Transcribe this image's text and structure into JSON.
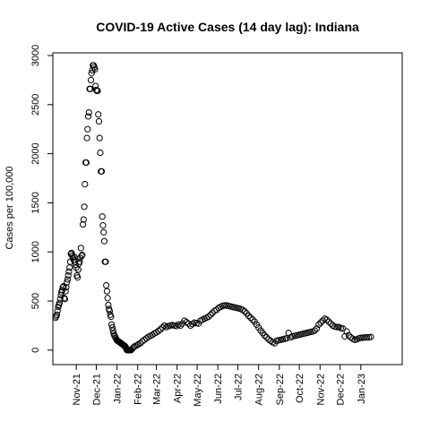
{
  "chart_data": {
    "type": "scatter",
    "title": "COVID-19 Active Cases (14 day lag): Indiana",
    "xlabel": "",
    "ylabel": "Cases per 100,000",
    "x_axis": {
      "range": [
        "2021-10-01",
        "2023-02-28"
      ],
      "tick_labels": [
        "Nov-21",
        "Dec-21",
        "Jan-22",
        "Feb-22",
        "Mar-22",
        "Apr-22",
        "May-22",
        "Jun-22",
        "Jul-22",
        "Aug-22",
        "Sep-22",
        "Oct-22",
        "Nov-22",
        "Dec-22",
        "Jan-23"
      ],
      "tick_dates": [
        "2021-11-01",
        "2021-12-01",
        "2022-01-01",
        "2022-02-01",
        "2022-03-01",
        "2022-04-01",
        "2022-05-01",
        "2022-06-01",
        "2022-07-01",
        "2022-08-01",
        "2022-09-01",
        "2022-10-01",
        "2022-11-01",
        "2022-12-01",
        "2023-01-01"
      ]
    },
    "y_axis": {
      "range": [
        -120,
        3000
      ],
      "ticks": [
        0,
        500,
        1000,
        1500,
        2000,
        2500,
        3000
      ]
    },
    "grid": false,
    "legend": "none",
    "colors": {
      "points": "#000000",
      "axes": "#000000",
      "background": "#ffffff"
    },
    "points": [
      [
        "2021-10-01",
        330
      ],
      [
        "2021-10-02",
        345
      ],
      [
        "2021-10-03",
        360
      ],
      [
        "2021-10-04",
        400
      ],
      [
        "2021-10-05",
        440
      ],
      [
        "2021-10-06",
        460
      ],
      [
        "2021-10-07",
        480
      ],
      [
        "2021-10-08",
        520
      ],
      [
        "2021-10-09",
        560
      ],
      [
        "2021-10-10",
        590
      ],
      [
        "2021-10-11",
        610
      ],
      [
        "2021-10-12",
        640
      ],
      [
        "2021-10-13",
        650
      ],
      [
        "2021-10-14",
        530
      ],
      [
        "2021-10-15",
        520
      ],
      [
        "2021-10-16",
        600
      ],
      [
        "2021-10-17",
        640
      ],
      [
        "2021-10-18",
        690
      ],
      [
        "2021-10-19",
        720
      ],
      [
        "2021-10-20",
        760
      ],
      [
        "2021-10-21",
        800
      ],
      [
        "2021-10-22",
        840
      ],
      [
        "2021-10-23",
        900
      ],
      [
        "2021-10-24",
        980
      ],
      [
        "2021-10-25",
        990
      ],
      [
        "2021-10-26",
        960
      ],
      [
        "2021-10-27",
        940
      ],
      [
        "2021-10-28",
        920
      ],
      [
        "2021-10-29",
        950
      ],
      [
        "2021-10-30",
        900
      ],
      [
        "2021-10-31",
        870
      ],
      [
        "2021-11-01",
        840
      ],
      [
        "2021-11-02",
        760
      ],
      [
        "2021-11-03",
        740
      ],
      [
        "2021-11-04",
        820
      ],
      [
        "2021-11-05",
        880
      ],
      [
        "2021-11-06",
        900
      ],
      [
        "2021-11-07",
        940
      ],
      [
        "2021-11-08",
        1040
      ],
      [
        "2021-11-09",
        960
      ],
      [
        "2021-11-10",
        970
      ],
      [
        "2021-11-11",
        1280
      ],
      [
        "2021-11-12",
        1330
      ],
      [
        "2021-11-13",
        1460
      ],
      [
        "2021-11-14",
        1690
      ],
      [
        "2021-11-15",
        1910
      ],
      [
        "2021-11-16",
        1910
      ],
      [
        "2021-11-17",
        2160
      ],
      [
        "2021-11-18",
        2250
      ],
      [
        "2021-11-19",
        2380
      ],
      [
        "2021-11-20",
        2420
      ],
      [
        "2021-11-21",
        2660
      ],
      [
        "2021-11-22",
        2660
      ],
      [
        "2021-11-23",
        2750
      ],
      [
        "2021-11-24",
        2820
      ],
      [
        "2021-11-25",
        2850
      ],
      [
        "2021-11-26",
        2900
      ],
      [
        "2021-11-27",
        2900
      ],
      [
        "2021-11-28",
        2880
      ],
      [
        "2021-11-29",
        2860
      ],
      [
        "2021-11-30",
        2690
      ],
      [
        "2021-12-01",
        2650
      ],
      [
        "2021-12-02",
        2640
      ],
      [
        "2021-12-03",
        2640
      ],
      [
        "2021-12-04",
        2400
      ],
      [
        "2021-12-05",
        2330
      ],
      [
        "2021-12-06",
        2160
      ],
      [
        "2021-12-07",
        2010
      ],
      [
        "2021-12-08",
        1820
      ],
      [
        "2021-12-09",
        1820
      ],
      [
        "2021-12-10",
        1360
      ],
      [
        "2021-12-11",
        1270
      ],
      [
        "2021-12-12",
        1200
      ],
      [
        "2021-12-13",
        1110
      ],
      [
        "2021-12-14",
        900
      ],
      [
        "2021-12-15",
        900
      ],
      [
        "2021-12-16",
        660
      ],
      [
        "2021-12-17",
        600
      ],
      [
        "2021-12-18",
        530
      ],
      [
        "2021-12-19",
        460
      ],
      [
        "2021-12-20",
        420
      ],
      [
        "2021-12-21",
        400
      ],
      [
        "2021-12-22",
        360
      ],
      [
        "2021-12-23",
        340
      ],
      [
        "2021-12-24",
        260
      ],
      [
        "2021-12-25",
        230
      ],
      [
        "2021-12-26",
        200
      ],
      [
        "2021-12-27",
        170
      ],
      [
        "2021-12-28",
        150
      ],
      [
        "2021-12-29",
        140
      ],
      [
        "2021-12-30",
        125
      ],
      [
        "2021-12-31",
        110
      ],
      [
        "2022-01-01",
        100
      ],
      [
        "2022-01-02",
        95
      ],
      [
        "2022-01-03",
        90
      ],
      [
        "2022-01-04",
        85
      ],
      [
        "2022-01-05",
        80
      ],
      [
        "2022-01-06",
        75
      ],
      [
        "2022-01-07",
        70
      ],
      [
        "2022-01-08",
        65
      ],
      [
        "2022-01-09",
        60
      ],
      [
        "2022-01-10",
        55
      ],
      [
        "2022-01-11",
        50
      ],
      [
        "2022-01-12",
        45
      ],
      [
        "2022-01-13",
        40
      ],
      [
        "2022-01-14",
        30
      ],
      [
        "2022-01-15",
        10
      ],
      [
        "2022-01-16",
        0
      ],
      [
        "2022-01-17",
        0
      ],
      [
        "2022-01-18",
        0
      ],
      [
        "2022-01-19",
        0
      ],
      [
        "2022-01-20",
        0
      ],
      [
        "2022-01-21",
        0
      ],
      [
        "2022-01-22",
        0
      ],
      [
        "2022-01-24",
        15
      ],
      [
        "2022-01-26",
        30
      ],
      [
        "2022-01-28",
        40
      ],
      [
        "2022-01-31",
        50
      ],
      [
        "2022-02-02",
        60
      ],
      [
        "2022-02-05",
        70
      ],
      [
        "2022-02-08",
        90
      ],
      [
        "2022-02-11",
        105
      ],
      [
        "2022-02-14",
        120
      ],
      [
        "2022-02-17",
        135
      ],
      [
        "2022-02-20",
        145
      ],
      [
        "2022-02-23",
        155
      ],
      [
        "2022-02-26",
        170
      ],
      [
        "2022-03-01",
        180
      ],
      [
        "2022-03-04",
        195
      ],
      [
        "2022-03-07",
        210
      ],
      [
        "2022-03-10",
        230
      ],
      [
        "2022-03-13",
        250
      ],
      [
        "2022-03-16",
        235
      ],
      [
        "2022-03-19",
        245
      ],
      [
        "2022-03-22",
        250
      ],
      [
        "2022-03-25",
        255
      ],
      [
        "2022-03-28",
        250
      ],
      [
        "2022-03-31",
        245
      ],
      [
        "2022-04-03",
        260
      ],
      [
        "2022-04-06",
        250
      ],
      [
        "2022-04-09",
        270
      ],
      [
        "2022-04-12",
        300
      ],
      [
        "2022-04-15",
        285
      ],
      [
        "2022-04-18",
        270
      ],
      [
        "2022-04-21",
        250
      ],
      [
        "2022-04-24",
        265
      ],
      [
        "2022-04-27",
        280
      ],
      [
        "2022-04-30",
        275
      ],
      [
        "2022-05-03",
        270
      ],
      [
        "2022-05-06",
        300
      ],
      [
        "2022-05-09",
        310
      ],
      [
        "2022-05-12",
        320
      ],
      [
        "2022-05-15",
        330
      ],
      [
        "2022-05-18",
        340
      ],
      [
        "2022-05-21",
        360
      ],
      [
        "2022-05-24",
        380
      ],
      [
        "2022-05-27",
        400
      ],
      [
        "2022-05-30",
        410
      ],
      [
        "2022-06-02",
        430
      ],
      [
        "2022-06-05",
        440
      ],
      [
        "2022-06-08",
        450
      ],
      [
        "2022-06-11",
        455
      ],
      [
        "2022-06-14",
        455
      ],
      [
        "2022-06-17",
        450
      ],
      [
        "2022-06-20",
        445
      ],
      [
        "2022-06-23",
        440
      ],
      [
        "2022-06-26",
        435
      ],
      [
        "2022-06-29",
        430
      ],
      [
        "2022-07-02",
        425
      ],
      [
        "2022-07-05",
        420
      ],
      [
        "2022-07-08",
        410
      ],
      [
        "2022-07-11",
        395
      ],
      [
        "2022-07-14",
        375
      ],
      [
        "2022-07-17",
        350
      ],
      [
        "2022-07-20",
        330
      ],
      [
        "2022-07-23",
        310
      ],
      [
        "2022-07-26",
        290
      ],
      [
        "2022-07-29",
        260
      ],
      [
        "2022-08-01",
        230
      ],
      [
        "2022-08-04",
        200
      ],
      [
        "2022-08-07",
        175
      ],
      [
        "2022-08-10",
        150
      ],
      [
        "2022-08-13",
        130
      ],
      [
        "2022-08-16",
        110
      ],
      [
        "2022-08-19",
        95
      ],
      [
        "2022-08-22",
        80
      ],
      [
        "2022-08-25",
        70
      ],
      [
        "2022-08-28",
        95
      ],
      [
        "2022-08-31",
        100
      ],
      [
        "2022-09-03",
        105
      ],
      [
        "2022-09-06",
        110
      ],
      [
        "2022-09-09",
        115
      ],
      [
        "2022-09-12",
        120
      ],
      [
        "2022-09-15",
        175
      ],
      [
        "2022-09-18",
        130
      ],
      [
        "2022-09-21",
        140
      ],
      [
        "2022-09-24",
        145
      ],
      [
        "2022-09-27",
        150
      ],
      [
        "2022-09-30",
        155
      ],
      [
        "2022-10-03",
        160
      ],
      [
        "2022-10-06",
        165
      ],
      [
        "2022-10-09",
        170
      ],
      [
        "2022-10-12",
        175
      ],
      [
        "2022-10-15",
        180
      ],
      [
        "2022-10-18",
        185
      ],
      [
        "2022-10-21",
        190
      ],
      [
        "2022-10-24",
        200
      ],
      [
        "2022-10-27",
        220
      ],
      [
        "2022-10-30",
        260
      ],
      [
        "2022-11-02",
        280
      ],
      [
        "2022-11-05",
        300
      ],
      [
        "2022-11-08",
        320
      ],
      [
        "2022-11-11",
        310
      ],
      [
        "2022-11-14",
        290
      ],
      [
        "2022-11-17",
        270
      ],
      [
        "2022-11-20",
        250
      ],
      [
        "2022-11-23",
        240
      ],
      [
        "2022-11-26",
        235
      ],
      [
        "2022-11-29",
        235
      ],
      [
        "2022-12-02",
        225
      ],
      [
        "2022-12-05",
        220
      ],
      [
        "2022-12-08",
        140
      ],
      [
        "2022-12-11",
        190
      ],
      [
        "2022-12-14",
        150
      ],
      [
        "2022-12-17",
        130
      ],
      [
        "2022-12-20",
        115
      ],
      [
        "2022-12-23",
        105
      ],
      [
        "2022-12-26",
        110
      ],
      [
        "2022-12-29",
        120
      ],
      [
        "2023-01-01",
        125
      ],
      [
        "2023-01-04",
        125
      ],
      [
        "2023-01-07",
        130
      ],
      [
        "2023-01-10",
        130
      ],
      [
        "2023-01-13",
        130
      ],
      [
        "2023-01-16",
        135
      ]
    ]
  }
}
